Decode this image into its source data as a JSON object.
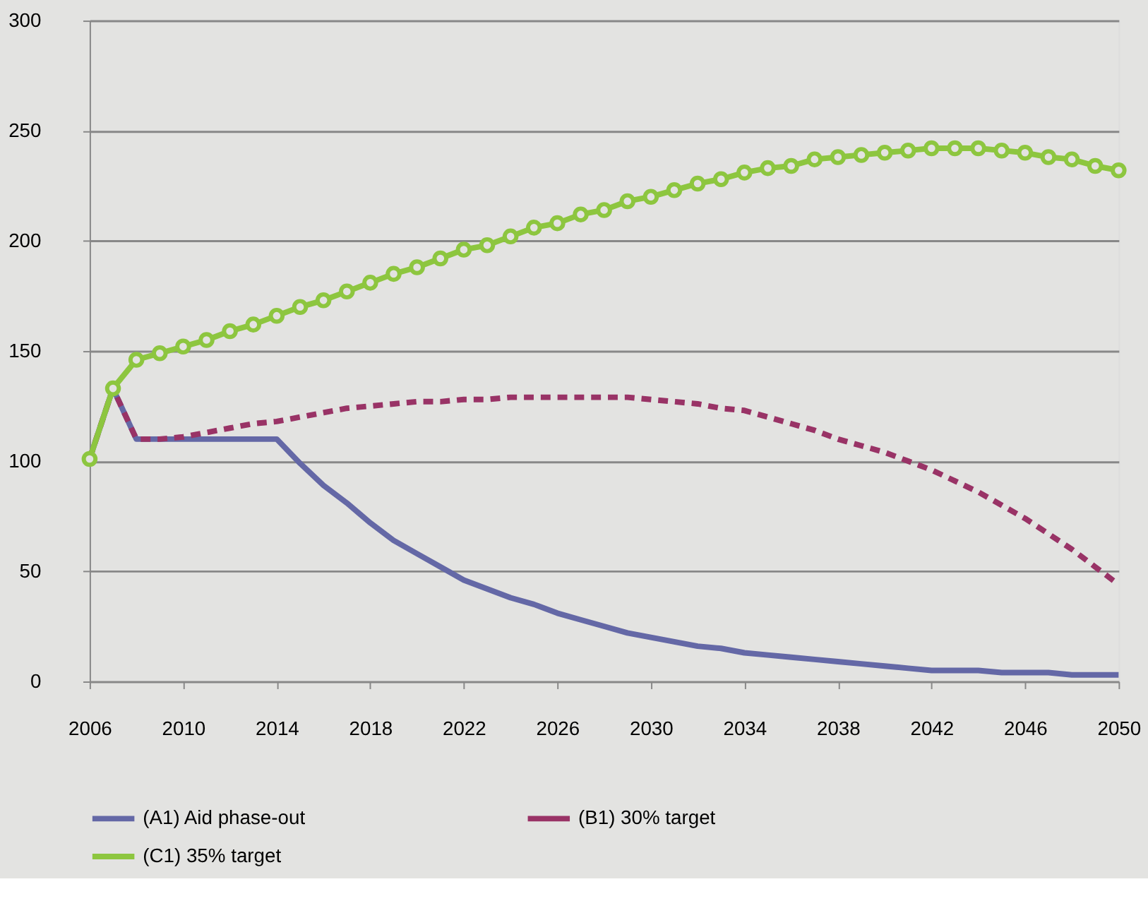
{
  "chart_data": {
    "type": "line",
    "x": [
      2006,
      2007,
      2008,
      2009,
      2010,
      2011,
      2012,
      2013,
      2014,
      2015,
      2016,
      2017,
      2018,
      2019,
      2020,
      2021,
      2022,
      2023,
      2024,
      2025,
      2026,
      2027,
      2028,
      2029,
      2030,
      2031,
      2032,
      2033,
      2034,
      2035,
      2036,
      2037,
      2038,
      2039,
      2040,
      2041,
      2042,
      2043,
      2044,
      2045,
      2046,
      2047,
      2048,
      2049,
      2050
    ],
    "series": [
      {
        "name": "(A1) Aid phase-out",
        "color": "#6468a6",
        "line_style": "solid",
        "marker": "none",
        "values": [
          101,
          133,
          110,
          110,
          110,
          110,
          110,
          110,
          110,
          99,
          89,
          81,
          72,
          64,
          58,
          52,
          46,
          42,
          38,
          35,
          31,
          28,
          25,
          22,
          20,
          18,
          16,
          15,
          13,
          12,
          11,
          10,
          9,
          8,
          7,
          6,
          5,
          5,
          5,
          4,
          4,
          4,
          3,
          3,
          3
        ]
      },
      {
        "name": "(B1) 30% target",
        "color": "#993366",
        "line_style": "dashed",
        "marker": "none",
        "values": [
          101,
          133,
          110,
          110,
          111,
          113,
          115,
          117,
          118,
          120,
          122,
          124,
          125,
          126,
          127,
          127,
          128,
          128,
          129,
          129,
          129,
          129,
          129,
          129,
          128,
          127,
          126,
          124,
          123,
          120,
          117,
          114,
          110,
          107,
          104,
          100,
          96,
          91,
          86,
          80,
          74,
          67,
          60,
          52,
          44
        ]
      },
      {
        "name": "(C1) 35% target",
        "color": "#8dc63f",
        "line_style": "solid",
        "marker": "circle",
        "values": [
          101,
          133,
          146,
          149,
          152,
          155,
          159,
          162,
          166,
          170,
          173,
          177,
          181,
          185,
          188,
          192,
          196,
          198,
          202,
          206,
          208,
          212,
          214,
          218,
          220,
          223,
          226,
          228,
          231,
          233,
          234,
          237,
          238,
          239,
          240,
          241,
          242,
          242,
          242,
          241,
          240,
          238,
          237,
          234,
          232
        ]
      }
    ],
    "xlim": [
      2006,
      2050
    ],
    "xticks": [
      2006,
      2010,
      2014,
      2018,
      2022,
      2026,
      2030,
      2034,
      2038,
      2042,
      2046,
      2050
    ],
    "ylim": [
      0,
      300
    ],
    "yticks": [
      0,
      50,
      100,
      150,
      200,
      250,
      300
    ],
    "grid": "y",
    "legend": "bottom"
  }
}
